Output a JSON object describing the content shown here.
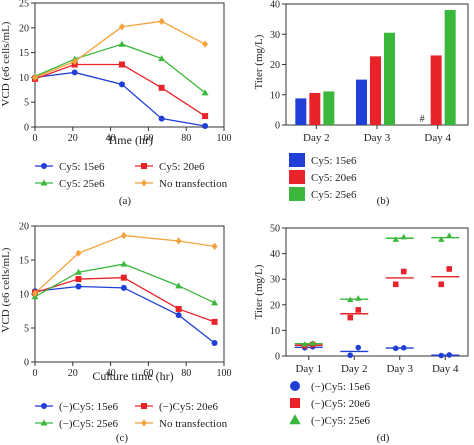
{
  "chart_data": [
    {
      "panel": "(a)",
      "type": "line",
      "xlabel": "Time (hr)",
      "ylabel": "VCD (e6 cells/mL)",
      "xlim": [
        0,
        100
      ],
      "ylim": [
        0,
        25
      ],
      "xticks": [
        0,
        20,
        40,
        60,
        80,
        100
      ],
      "yticks": [
        0,
        5,
        10,
        15,
        20,
        25
      ],
      "grid": false,
      "legend_position": "below",
      "series": [
        {
          "name": "Cy5: 15e6",
          "color": "#1f3fd6",
          "marker": "circle",
          "x": [
            0,
            21,
            46,
            67,
            90
          ],
          "y": [
            10,
            11,
            8.6,
            1.7,
            0.2
          ]
        },
        {
          "name": "Cy5: 20e6",
          "color": "#e8232a",
          "marker": "square",
          "x": [
            0,
            21,
            46,
            67,
            90
          ],
          "y": [
            9.7,
            12.6,
            12.6,
            7.9,
            2.2
          ]
        },
        {
          "name": "Cy5: 25e6",
          "color": "#3bb83b",
          "marker": "triangle",
          "x": [
            0,
            21,
            46,
            67,
            90
          ],
          "y": [
            10.2,
            13.7,
            16.7,
            13.8,
            6.9
          ]
        },
        {
          "name": "No transfection",
          "color": "#f5a23d",
          "marker": "diamond",
          "x": [
            0,
            21,
            46,
            67,
            90
          ],
          "y": [
            10,
            13.2,
            20.2,
            21.3,
            16.7
          ]
        }
      ]
    },
    {
      "panel": "(b)",
      "type": "bar",
      "ylabel": "Titer (mg/L)",
      "categories": [
        "Day 2",
        "Day 3",
        "Day 4"
      ],
      "ylim": [
        0,
        40
      ],
      "yticks": [
        0,
        10,
        20,
        30,
        40
      ],
      "grid": false,
      "legend_position": "below",
      "annotations": [
        {
          "text": "#",
          "category": "Day 4"
        }
      ],
      "series": [
        {
          "name": "Cy5: 15e6",
          "color": "#1f3fd6",
          "values": [
            8.8,
            15.0,
            0
          ]
        },
        {
          "name": "Cy5: 20e6",
          "color": "#e8232a",
          "values": [
            10.6,
            22.7,
            23.0
          ]
        },
        {
          "name": "Cy5: 25e6",
          "color": "#3bb83b",
          "values": [
            11.1,
            30.5,
            38.0
          ]
        }
      ]
    },
    {
      "panel": "(c)",
      "type": "line",
      "xlabel": "Culture time (hr)",
      "ylabel": "VCD (e6 cells/mL)",
      "xlim": [
        0,
        100
      ],
      "ylim": [
        0,
        20
      ],
      "xticks": [
        0,
        20,
        40,
        60,
        80,
        100
      ],
      "yticks": [
        0,
        5,
        10,
        15,
        20
      ],
      "grid": false,
      "legend_position": "below",
      "series": [
        {
          "name": "(−)Cy5: 15e6",
          "color": "#1f3fd6",
          "marker": "circle",
          "x": [
            0,
            23,
            47,
            76,
            95
          ],
          "y": [
            10.4,
            11.1,
            10.9,
            6.9,
            2.8
          ]
        },
        {
          "name": "(−)Cy5: 20e6",
          "color": "#e8232a",
          "marker": "square",
          "x": [
            0,
            23,
            47,
            76,
            95
          ],
          "y": [
            10.2,
            12.2,
            12.4,
            7.8,
            5.9
          ]
        },
        {
          "name": "(−)Cy5: 25e6",
          "color": "#3bb83b",
          "marker": "triangle",
          "x": [
            0,
            23,
            47,
            76,
            95
          ],
          "y": [
            9.6,
            13.2,
            14.4,
            11.2,
            8.7
          ]
        },
        {
          "name": "No transfection",
          "color": "#f5a23d",
          "marker": "diamond",
          "x": [
            0,
            23,
            47,
            76,
            95
          ],
          "y": [
            10.1,
            16.0,
            18.6,
            17.8,
            17.0
          ]
        }
      ]
    },
    {
      "panel": "(d)",
      "type": "scatter",
      "ylabel": "Titer (mg/L)",
      "categories": [
        "Day 1",
        "Day 2",
        "Day 3",
        "Day 4"
      ],
      "ylim": [
        0,
        50
      ],
      "yticks": [
        0,
        10,
        20,
        30,
        40,
        50
      ],
      "grid": false,
      "legend_position": "below",
      "series": [
        {
          "name": "(−)Cy5: 15e6",
          "color": "#1f3fd6",
          "marker": "circle",
          "points": [
            [
              0,
              3.2
            ],
            [
              0,
              3.6
            ],
            [
              1,
              0.3
            ],
            [
              1,
              3.3
            ],
            [
              2,
              3.0
            ],
            [
              2,
              3.2
            ],
            [
              3,
              0.2
            ],
            [
              3,
              0.4
            ]
          ],
          "means": [
            3.4,
            1.8,
            3.1,
            0.3
          ]
        },
        {
          "name": "(−)Cy5: 20e6",
          "color": "#e8232a",
          "marker": "square",
          "points": [
            [
              0,
              4.0
            ],
            [
              0,
              4.5
            ],
            [
              1,
              15.0
            ],
            [
              1,
              18.0
            ],
            [
              2,
              28.0
            ],
            [
              2,
              33.0
            ],
            [
              3,
              28.0
            ],
            [
              3,
              34.0
            ]
          ],
          "means": [
            4.2,
            16.5,
            30.5,
            31.0
          ]
        },
        {
          "name": "(−)Cy5: 25e6",
          "color": "#3bb83b",
          "marker": "triangle",
          "points": [
            [
              0,
              4.6
            ],
            [
              0,
              5.0
            ],
            [
              1,
              22.0
            ],
            [
              1,
              22.5
            ],
            [
              2,
              45.5
            ],
            [
              2,
              46.5
            ],
            [
              3,
              45.5
            ],
            [
              3,
              47.0
            ]
          ],
          "means": [
            4.8,
            22.2,
            46.0,
            46.2
          ]
        }
      ]
    }
  ]
}
